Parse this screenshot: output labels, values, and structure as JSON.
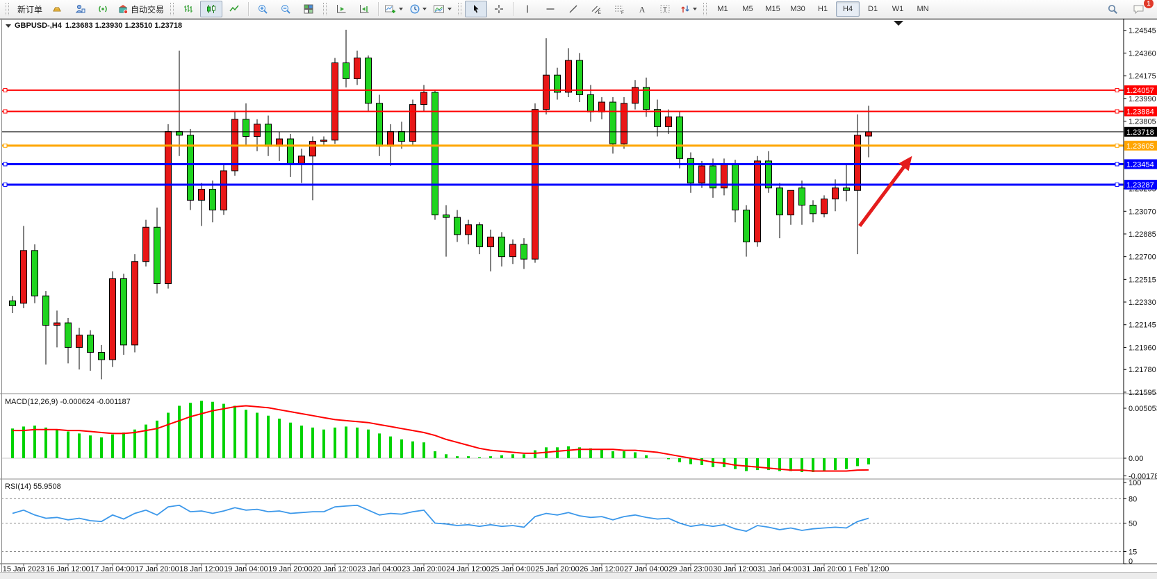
{
  "toolbar": {
    "new_order_label": "新订单",
    "auto_trading_label": "自动交易",
    "timeframe_labels": [
      "M1",
      "M5",
      "M15",
      "M30",
      "H1",
      "H4",
      "D1",
      "W1",
      "MN"
    ],
    "active_timeframe": "H4",
    "notification_count": "1",
    "icons": [
      "gold-icon",
      "accounts-icon",
      "signal-icon",
      "auto-trading-icon",
      "bar-chart-icon",
      "candlestick-chart-icon",
      "line-chart-icon",
      "zoom-in-icon",
      "zoom-out-icon",
      "tile-windows-icon",
      "auto-scroll-icon",
      "chart-shift-icon",
      "add-indicator-icon",
      "periods-icon",
      "template-icon",
      "cursor-icon",
      "crosshair-icon",
      "vertical-line-icon",
      "horizontal-line-icon",
      "trendline-icon",
      "equidistant-channel-icon",
      "fibonacci-icon",
      "text-icon",
      "text-label-icon",
      "arrows-icon",
      "search-icon",
      "comment-icon"
    ]
  },
  "chart_header": {
    "symbol": "GBPUSD-,H4",
    "ohlc": "1.23683 1.23930 1.23510 1.23718"
  },
  "indicators": {
    "macd_label": "MACD(12,26,9) -0.000624 -0.001187",
    "rsi_label": "RSI(14) 55.9508"
  },
  "chart_data": [
    {
      "type": "candlestick",
      "title": "GBPUSD- H4",
      "ohlc_current": {
        "open": 1.23683,
        "high": 1.2393,
        "low": 1.2351,
        "close": 1.23718
      },
      "up_color": "#e81717",
      "down_color": "#1fd41f",
      "wick_color": "#000000",
      "grid": false,
      "ylim": [
        1.2154,
        1.2464
      ],
      "y_ticks": [
        "1.24545",
        "1.24360",
        "1.24175",
        "1.23990",
        "1.23805",
        "1.23255",
        "1.23070",
        "1.22885",
        "1.22700",
        "1.22515",
        "1.22330",
        "1.22145",
        "1.21960",
        "1.21780",
        "1.21595"
      ],
      "hlines": [
        {
          "price": 1.24057,
          "label": "1.24057",
          "color": "#ff0000",
          "width": 2
        },
        {
          "price": 1.23884,
          "label": "1.23884",
          "color": "#ff0000",
          "width": 2
        },
        {
          "price": 1.23718,
          "label": "1.23718",
          "color": "#000000",
          "width": 1
        },
        {
          "price": 1.23605,
          "label": "1.23605",
          "color": "#ffa500",
          "width": 3
        },
        {
          "price": 1.23454,
          "label": "1.23454",
          "color": "#0000ff",
          "width": 3
        },
        {
          "price": 1.23287,
          "label": "1.23287",
          "color": "#0000ff",
          "width": 3
        }
      ],
      "trend_arrow": {
        "from": {
          "bar": 76.2,
          "price": 1.2295
        },
        "to": {
          "bar": 80.9,
          "price": 1.2352
        },
        "color": "#e41c1c"
      },
      "x_labels": [
        {
          "bar": 1,
          "text": "15 Jan 2023"
        },
        {
          "bar": 5,
          "text": "16 Jan 12:00"
        },
        {
          "bar": 9,
          "text": "17 Jan 04:00"
        },
        {
          "bar": 13,
          "text": "17 Jan 20:00"
        },
        {
          "bar": 17,
          "text": "18 Jan 12:00"
        },
        {
          "bar": 21,
          "text": "19 Jan 04:00"
        },
        {
          "bar": 25,
          "text": "19 Jan 20:00"
        },
        {
          "bar": 29,
          "text": "20 Jan 12:00"
        },
        {
          "bar": 33,
          "text": "23 Jan 04:00"
        },
        {
          "bar": 37,
          "text": "23 Jan 20:00"
        },
        {
          "bar": 41,
          "text": "24 Jan 12:00"
        },
        {
          "bar": 45,
          "text": "25 Jan 04:00"
        },
        {
          "bar": 49,
          "text": "25 Jan 20:00"
        },
        {
          "bar": 53,
          "text": "26 Jan 12:00"
        },
        {
          "bar": 57,
          "text": "27 Jan 04:00"
        },
        {
          "bar": 61,
          "text": "29 Jan 23:00"
        },
        {
          "bar": 65,
          "text": "30 Jan 12:00"
        },
        {
          "bar": 69,
          "text": "31 Jan 04:00"
        },
        {
          "bar": 73,
          "text": "31 Jan 20:00"
        },
        {
          "bar": 77,
          "text": "1 Feb 12:00"
        }
      ],
      "candles": [
        [
          1.2234,
          1.2238,
          1.2224,
          1.223
        ],
        [
          1.2232,
          1.2295,
          1.2228,
          1.2275
        ],
        [
          1.2275,
          1.228,
          1.2232,
          1.2238
        ],
        [
          1.2238,
          1.2242,
          1.2182,
          1.2214
        ],
        [
          1.2214,
          1.2226,
          1.2196,
          1.2216
        ],
        [
          1.2216,
          1.222,
          1.2183,
          1.2196
        ],
        [
          1.2196,
          1.2212,
          1.2178,
          1.2206
        ],
        [
          1.2206,
          1.221,
          1.2177,
          1.2192
        ],
        [
          1.2192,
          1.2198,
          1.217,
          1.2186
        ],
        [
          1.2186,
          1.2258,
          1.218,
          1.2252
        ],
        [
          1.2252,
          1.2256,
          1.219,
          1.2198
        ],
        [
          1.2198,
          1.2272,
          1.2192,
          1.2266
        ],
        [
          1.2266,
          1.23,
          1.2262,
          1.2294
        ],
        [
          1.2294,
          1.231,
          1.224,
          1.2248
        ],
        [
          1.2248,
          1.2378,
          1.2244,
          1.2372
        ],
        [
          1.2372,
          1.2438,
          1.2352,
          1.2369
        ],
        [
          1.2369,
          1.2374,
          1.2308,
          1.2316
        ],
        [
          1.2316,
          1.233,
          1.2295,
          1.2325
        ],
        [
          1.2325,
          1.2332,
          1.2298,
          1.2308
        ],
        [
          1.2308,
          1.2345,
          1.2304,
          1.234
        ],
        [
          1.234,
          1.2388,
          1.2336,
          1.2382
        ],
        [
          1.2382,
          1.2395,
          1.236,
          1.2368
        ],
        [
          1.2368,
          1.2382,
          1.2356,
          1.2378
        ],
        [
          1.2378,
          1.2385,
          1.2352,
          1.236
        ],
        [
          1.236,
          1.2372,
          1.2348,
          1.2366
        ],
        [
          1.2366,
          1.237,
          1.2335,
          1.2346
        ],
        [
          1.2346,
          1.2358,
          1.233,
          1.2352
        ],
        [
          1.2352,
          1.2368,
          1.2316,
          1.2364
        ],
        [
          1.2364,
          1.2368,
          1.236,
          1.2365
        ],
        [
          1.2365,
          1.2432,
          1.2362,
          1.2428
        ],
        [
          1.2428,
          1.2455,
          1.2408,
          1.2415
        ],
        [
          1.2415,
          1.2438,
          1.241,
          1.2432
        ],
        [
          1.2432,
          1.2434,
          1.2388,
          1.2395
        ],
        [
          1.2395,
          1.2402,
          1.2352,
          1.236
        ],
        [
          1.236,
          1.2378,
          1.2344,
          1.2372
        ],
        [
          1.2372,
          1.238,
          1.2358,
          1.2364
        ],
        [
          1.2364,
          1.2398,
          1.236,
          1.2394
        ],
        [
          1.2394,
          1.241,
          1.2388,
          1.2404
        ],
        [
          1.2404,
          1.2406,
          1.23,
          1.2304
        ],
        [
          1.2304,
          1.2312,
          1.227,
          1.2302
        ],
        [
          1.2302,
          1.2308,
          1.2282,
          1.2288
        ],
        [
          1.2288,
          1.23,
          1.228,
          1.2296
        ],
        [
          1.2296,
          1.2298,
          1.2272,
          1.2278
        ],
        [
          1.2278,
          1.2292,
          1.2258,
          1.2286
        ],
        [
          1.2286,
          1.229,
          1.2262,
          1.227
        ],
        [
          1.227,
          1.2284,
          1.2264,
          1.228
        ],
        [
          1.228,
          1.2285,
          1.226,
          1.2268
        ],
        [
          1.2268,
          1.2395,
          1.2265,
          1.239
        ],
        [
          1.239,
          1.2448,
          1.2386,
          1.2418
        ],
        [
          1.2418,
          1.2424,
          1.2398,
          1.2404
        ],
        [
          1.2404,
          1.244,
          1.24,
          1.243
        ],
        [
          1.243,
          1.2436,
          1.2396,
          1.2402
        ],
        [
          1.2402,
          1.241,
          1.238,
          1.2388
        ],
        [
          1.2388,
          1.24,
          1.2382,
          1.2396
        ],
        [
          1.2396,
          1.24,
          1.2354,
          1.2362
        ],
        [
          1.2362,
          1.24,
          1.2358,
          1.2395
        ],
        [
          1.2395,
          1.2414,
          1.239,
          1.2408
        ],
        [
          1.2408,
          1.2416,
          1.2384,
          1.239
        ],
        [
          1.239,
          1.2398,
          1.2368,
          1.2376
        ],
        [
          1.2376,
          1.239,
          1.237,
          1.2384
        ],
        [
          1.2384,
          1.2388,
          1.2342,
          1.235
        ],
        [
          1.235,
          1.2355,
          1.2322,
          1.233
        ],
        [
          1.233,
          1.2348,
          1.2326,
          1.2344
        ],
        [
          1.2344,
          1.235,
          1.2318,
          1.2326
        ],
        [
          1.2326,
          1.235,
          1.232,
          1.2345
        ],
        [
          1.2345,
          1.2349,
          1.2298,
          1.2308
        ],
        [
          1.2308,
          1.2312,
          1.227,
          1.2282
        ],
        [
          1.2282,
          1.2352,
          1.2278,
          1.2348
        ],
        [
          1.2348,
          1.2356,
          1.2322,
          1.2326
        ],
        [
          1.2326,
          1.233,
          1.2285,
          1.2304
        ],
        [
          1.2304,
          1.2316,
          1.2296,
          1.2324
        ],
        [
          1.2326,
          1.2332,
          1.2296,
          1.2312
        ],
        [
          1.2312,
          1.2316,
          1.2298,
          1.2305
        ],
        [
          1.2305,
          1.232,
          1.2302,
          1.2317
        ],
        [
          1.2317,
          1.2333,
          1.2307,
          1.2326
        ],
        [
          1.2326,
          1.2346,
          1.2315,
          1.2324
        ],
        [
          1.2324,
          1.2386,
          1.2272,
          1.2369
        ],
        [
          1.23683,
          1.2393,
          1.2351,
          1.23718
        ]
      ]
    },
    {
      "type": "bar+line",
      "name": "MACD(12,26,9)",
      "current_values": "-0.000624 -0.001187",
      "bar_color": "#00d300",
      "line_color": "#ff0000",
      "y_ticks": [
        "0.005053",
        "0.00",
        "-0.001784"
      ],
      "ylim": [
        -0.0021,
        0.0063
      ],
      "histogram": [
        0.003,
        0.0032,
        0.0033,
        0.0031,
        0.0029,
        0.0027,
        0.0025,
        0.0023,
        0.0021,
        0.0024,
        0.0026,
        0.0029,
        0.0034,
        0.0038,
        0.0046,
        0.0053,
        0.0056,
        0.0058,
        0.0057,
        0.0055,
        0.0053,
        0.0049,
        0.0046,
        0.0043,
        0.004,
        0.0036,
        0.0033,
        0.0031,
        0.0029,
        0.0031,
        0.0032,
        0.0031,
        0.0029,
        0.0025,
        0.0022,
        0.0019,
        0.0017,
        0.0016,
        0.0007,
        0.0004,
        0.0002,
        0.0002,
        0.0001,
        0.0002,
        0.0003,
        0.0004,
        0.0004,
        0.0008,
        0.0011,
        0.0011,
        0.0012,
        0.0011,
        0.001,
        0.0009,
        0.0007,
        0.0007,
        0.0006,
        0.0003,
        0.0,
        -0.0001,
        -0.0004,
        -0.0006,
        -0.0007,
        -0.0009,
        -0.0009,
        -0.0011,
        -0.0013,
        -0.0012,
        -0.0012,
        -0.0013,
        -0.0013,
        -0.0014,
        -0.0014,
        -0.0013,
        -0.0012,
        -0.0011,
        -0.0008,
        -0.000624
      ],
      "signal": [
        0.0028,
        0.0028,
        0.0029,
        0.0029,
        0.0029,
        0.0028,
        0.0028,
        0.0027,
        0.0026,
        0.0025,
        0.0025,
        0.0026,
        0.0028,
        0.003,
        0.0034,
        0.0038,
        0.0042,
        0.0045,
        0.0048,
        0.005,
        0.0052,
        0.0053,
        0.0052,
        0.0051,
        0.0049,
        0.0047,
        0.0045,
        0.0043,
        0.0041,
        0.0039,
        0.0038,
        0.0037,
        0.0036,
        0.0034,
        0.0032,
        0.003,
        0.0028,
        0.0026,
        0.0023,
        0.0019,
        0.0016,
        0.0013,
        0.001,
        0.0008,
        0.0007,
        0.0006,
        0.0005,
        0.0005,
        0.0006,
        0.0007,
        0.0008,
        0.0009,
        0.0009,
        0.0009,
        0.0009,
        0.0008,
        0.0008,
        0.0007,
        0.0006,
        0.0004,
        0.0002,
        0.0,
        -0.0002,
        -0.0004,
        -0.0005,
        -0.0007,
        -0.0008,
        -0.0009,
        -0.001,
        -0.0011,
        -0.0012,
        -0.0012,
        -0.0013,
        -0.0013,
        -0.0013,
        -0.0013,
        -0.0012,
        -0.001187
      ]
    },
    {
      "type": "line",
      "name": "RSI(14)",
      "current_value": "55.9508",
      "line_color": "#3c98ea",
      "levels": [
        80,
        50,
        15
      ],
      "y_ticks": [
        "100",
        "80",
        "50",
        "15",
        "0"
      ],
      "ylim": [
        0,
        100
      ],
      "values": [
        62,
        66,
        60,
        56,
        57,
        54,
        56,
        53,
        52,
        60,
        55,
        62,
        66,
        60,
        70,
        72,
        64,
        65,
        62,
        65,
        69,
        66,
        67,
        64,
        65,
        62,
        63,
        64,
        64,
        70,
        71,
        72,
        66,
        60,
        62,
        61,
        64,
        66,
        50,
        49,
        47,
        48,
        46,
        48,
        46,
        47,
        45,
        58,
        62,
        60,
        63,
        59,
        57,
        58,
        54,
        58,
        60,
        57,
        55,
        56,
        50,
        46,
        48,
        46,
        48,
        43,
        40,
        47,
        45,
        42,
        44,
        41,
        43,
        44,
        45,
        44,
        52,
        55.95
      ]
    }
  ]
}
